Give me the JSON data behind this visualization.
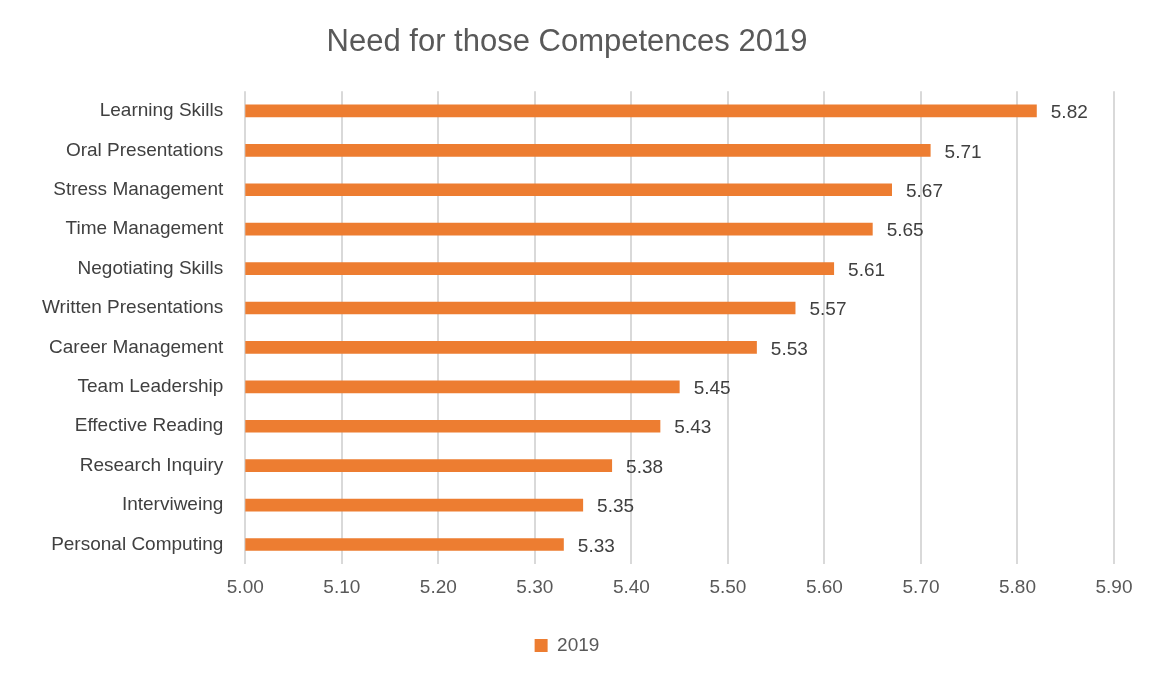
{
  "chart_data": {
    "type": "bar",
    "orientation": "horizontal",
    "title": "Need for those Competences 2019",
    "categories": [
      "Learning Skills",
      "Oral Presentations",
      "Stress Management",
      "Time Management",
      "Negotiating Skills",
      "Written Presentations",
      "Career Management",
      "Team Leadership",
      "Effective Reading",
      "Research Inquiry",
      "Interviweing",
      "Personal Computing"
    ],
    "series": [
      {
        "name": "2019",
        "color": "#ed7d31",
        "values": [
          5.82,
          5.71,
          5.67,
          5.65,
          5.61,
          5.57,
          5.53,
          5.45,
          5.43,
          5.38,
          5.35,
          5.33
        ]
      }
    ],
    "xlim": [
      5,
      5.9
    ],
    "xticks": [
      {
        "value": 5,
        "label": "5.00"
      },
      {
        "value": 5.1,
        "label": "5.10"
      },
      {
        "value": 5.2,
        "label": "5.20"
      },
      {
        "value": 5.3,
        "label": "5.30"
      },
      {
        "value": 5.4,
        "label": "5.40"
      },
      {
        "value": 5.5,
        "label": "5.50"
      },
      {
        "value": 5.6,
        "label": "5.60"
      },
      {
        "value": 5.7,
        "label": "5.70"
      },
      {
        "value": 5.8,
        "label": "5.80"
      },
      {
        "value": 5.9,
        "label": "5.90"
      }
    ],
    "grid": "x",
    "legend": "bottom",
    "data_labels": true
  }
}
